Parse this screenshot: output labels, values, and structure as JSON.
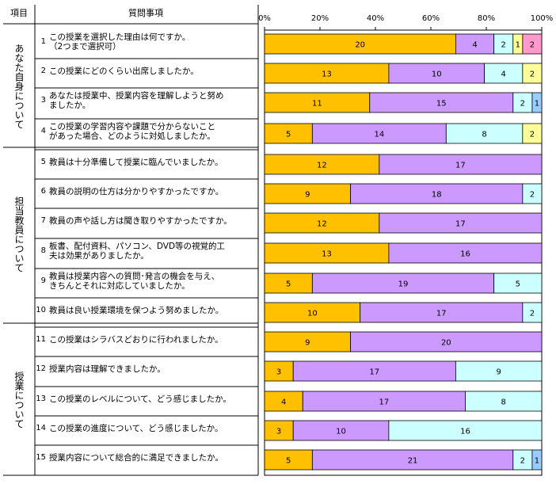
{
  "headers": {
    "category": "項目",
    "question": "質問事項"
  },
  "categories": [
    {
      "label": "あなた自身について"
    },
    {
      "label": "担当教員について"
    },
    {
      "label": "授業について"
    }
  ],
  "questions": [
    {
      "num": "1",
      "text": "この授業を選択した理由は何ですか。\n（2つまで選択可）"
    },
    {
      "num": "2",
      "text": "この授業にどのくらい出席しましたか。"
    },
    {
      "num": "3",
      "text": "あなたは授業中、授業内容を理解しようと努め\nましたか。"
    },
    {
      "num": "4",
      "text": "この授業の学習内容や課題で分からないこと\nがあった場合、どのように対処しましたか。"
    },
    {
      "num": "5",
      "text": "教員は十分準備して授業に臨んでいましたか。"
    },
    {
      "num": "6",
      "text": "教員の説明の仕方は分かりやすかったですか。"
    },
    {
      "num": "7",
      "text": "教員の声や話し方は聞き取りやすかったですか。"
    },
    {
      "num": "8",
      "text": "板書、配付資料、パソコン、DVD等の視覚的工\n夫は効果がありましたか。"
    },
    {
      "num": "9",
      "text": "教員は授業内容への質問･発言の機会を与え、\nきちんとそれに対応していましたか。"
    },
    {
      "num": "10",
      "text": "教員は良い授業環境を保つよう努めましたか。"
    },
    {
      "num": "11",
      "text": "この授業はシラバスどおりに行われましたか。"
    },
    {
      "num": "12",
      "text": "授業内容は理解できましたか。"
    },
    {
      "num": "13",
      "text": "この授業のレベルについて、どう感じましたか。"
    },
    {
      "num": "14",
      "text": "この授業の進度について、どう感じましたか。"
    },
    {
      "num": "15",
      "text": "授業内容について総合的に満足できましたか。"
    }
  ],
  "chart_data": {
    "type": "bar",
    "orientation": "horizontal",
    "stacked": "percent",
    "xlim": [
      0,
      100
    ],
    "xticks": [
      "0%",
      "20%",
      "40%",
      "60%",
      "80%",
      "100%"
    ],
    "categories": [
      "1",
      "2",
      "3",
      "4",
      "5",
      "6",
      "7",
      "8",
      "9",
      "10",
      "11",
      "12",
      "13",
      "14",
      "15"
    ],
    "colors": [
      "#FFC000",
      "#CC99FF",
      "#CCFFFF",
      "#FFFF99",
      "#FF99CC",
      "#99CCFF"
    ],
    "rows": [
      [
        20,
        4,
        2,
        1,
        2,
        0
      ],
      [
        13,
        10,
        4,
        2,
        0,
        0
      ],
      [
        11,
        15,
        2,
        0,
        0,
        1
      ],
      [
        5,
        14,
        8,
        2,
        0,
        0
      ],
      [
        12,
        17,
        0,
        0,
        0,
        0
      ],
      [
        9,
        18,
        2,
        0,
        0,
        0
      ],
      [
        12,
        17,
        0,
        0,
        0,
        0
      ],
      [
        13,
        16,
        0,
        0,
        0,
        0
      ],
      [
        5,
        19,
        5,
        0,
        0,
        0
      ],
      [
        10,
        17,
        2,
        0,
        0,
        0
      ],
      [
        9,
        20,
        0,
        0,
        0,
        0
      ],
      [
        3,
        17,
        9,
        0,
        0,
        0
      ],
      [
        4,
        17,
        8,
        0,
        0,
        0
      ],
      [
        3,
        10,
        16,
        0,
        0,
        0
      ],
      [
        5,
        21,
        2,
        0,
        0,
        1
      ]
    ]
  }
}
